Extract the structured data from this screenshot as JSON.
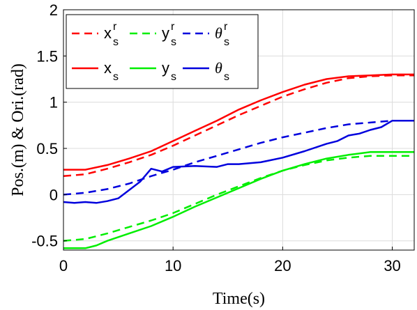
{
  "chart_data": {
    "type": "line",
    "xlabel": "Time(s)",
    "ylabel": "Pos.(m) & Ori.(rad)",
    "xlim": [
      0,
      32
    ],
    "ylim": [
      -0.6,
      2
    ],
    "xticks": [
      0,
      10,
      20,
      30
    ],
    "yticks": [
      -0.5,
      0,
      0.5,
      1,
      1.5,
      2
    ],
    "grid": true,
    "legend_position": "top-left",
    "series": [
      {
        "name": "x_s^r",
        "label_main": "x",
        "label_sub": "s",
        "label_sup": "r",
        "color": "#ff0000",
        "dash": true,
        "points": [
          [
            0,
            0.2
          ],
          [
            2,
            0.22
          ],
          [
            4,
            0.28
          ],
          [
            6,
            0.35
          ],
          [
            8,
            0.43
          ],
          [
            10,
            0.53
          ],
          [
            12,
            0.64
          ],
          [
            14,
            0.75
          ],
          [
            16,
            0.86
          ],
          [
            18,
            0.96
          ],
          [
            20,
            1.06
          ],
          [
            22,
            1.14
          ],
          [
            24,
            1.21
          ],
          [
            26,
            1.26
          ],
          [
            28,
            1.28
          ],
          [
            30,
            1.29
          ],
          [
            32,
            1.29
          ]
        ]
      },
      {
        "name": "y_s^r",
        "label_main": "y",
        "label_sub": "s",
        "label_sup": "r",
        "color": "#00ee00",
        "dash": true,
        "points": [
          [
            0,
            -0.5
          ],
          [
            2,
            -0.48
          ],
          [
            4,
            -0.42
          ],
          [
            6,
            -0.35
          ],
          [
            8,
            -0.28
          ],
          [
            10,
            -0.2
          ],
          [
            12,
            -0.1
          ],
          [
            14,
            0.0
          ],
          [
            16,
            0.09
          ],
          [
            18,
            0.18
          ],
          [
            20,
            0.26
          ],
          [
            22,
            0.32
          ],
          [
            24,
            0.37
          ],
          [
            26,
            0.4
          ],
          [
            28,
            0.42
          ],
          [
            30,
            0.42
          ],
          [
            32,
            0.42
          ]
        ]
      },
      {
        "name": "θ_s^r",
        "label_main": "θ",
        "label_sub": "s",
        "label_sup": "r",
        "color": "#0000dd",
        "dash": true,
        "points": [
          [
            0,
            0.0
          ],
          [
            2,
            0.02
          ],
          [
            4,
            0.06
          ],
          [
            6,
            0.12
          ],
          [
            8,
            0.2
          ],
          [
            10,
            0.27
          ],
          [
            12,
            0.35
          ],
          [
            14,
            0.42
          ],
          [
            16,
            0.49
          ],
          [
            18,
            0.56
          ],
          [
            20,
            0.62
          ],
          [
            22,
            0.67
          ],
          [
            24,
            0.72
          ],
          [
            26,
            0.76
          ],
          [
            28,
            0.78
          ],
          [
            30,
            0.8
          ],
          [
            32,
            0.8
          ]
        ]
      },
      {
        "name": "x_s",
        "label_main": "x",
        "label_sub": "s",
        "color": "#ff0000",
        "dash": false,
        "points": [
          [
            0,
            0.27
          ],
          [
            2,
            0.27
          ],
          [
            4,
            0.32
          ],
          [
            6,
            0.39
          ],
          [
            8,
            0.47
          ],
          [
            10,
            0.58
          ],
          [
            12,
            0.69
          ],
          [
            14,
            0.8
          ],
          [
            16,
            0.92
          ],
          [
            18,
            1.02
          ],
          [
            20,
            1.11
          ],
          [
            22,
            1.19
          ],
          [
            24,
            1.25
          ],
          [
            26,
            1.28
          ],
          [
            28,
            1.29
          ],
          [
            30,
            1.3
          ],
          [
            32,
            1.3
          ]
        ]
      },
      {
        "name": "y_s",
        "label_main": "y",
        "label_sub": "s",
        "color": "#00ee00",
        "dash": false,
        "points": [
          [
            0,
            -0.58
          ],
          [
            2,
            -0.58
          ],
          [
            3,
            -0.55
          ],
          [
            4,
            -0.5
          ],
          [
            6,
            -0.42
          ],
          [
            8,
            -0.34
          ],
          [
            10,
            -0.24
          ],
          [
            12,
            -0.13
          ],
          [
            14,
            -0.03
          ],
          [
            16,
            0.07
          ],
          [
            18,
            0.17
          ],
          [
            20,
            0.26
          ],
          [
            22,
            0.33
          ],
          [
            24,
            0.39
          ],
          [
            26,
            0.43
          ],
          [
            28,
            0.46
          ],
          [
            30,
            0.46
          ],
          [
            32,
            0.46
          ]
        ]
      },
      {
        "name": "θ_s",
        "label_main": "θ",
        "label_sub": "s",
        "color": "#0000dd",
        "dash": false,
        "points": [
          [
            0,
            -0.08
          ],
          [
            1,
            -0.09
          ],
          [
            2,
            -0.08
          ],
          [
            3,
            -0.09
          ],
          [
            4,
            -0.07
          ],
          [
            5,
            -0.04
          ],
          [
            6,
            0.05
          ],
          [
            7,
            0.14
          ],
          [
            8,
            0.28
          ],
          [
            9,
            0.25
          ],
          [
            10,
            0.3
          ],
          [
            12,
            0.31
          ],
          [
            14,
            0.3
          ],
          [
            15,
            0.33
          ],
          [
            16,
            0.33
          ],
          [
            18,
            0.35
          ],
          [
            20,
            0.4
          ],
          [
            22,
            0.47
          ],
          [
            24,
            0.55
          ],
          [
            25,
            0.58
          ],
          [
            26,
            0.64
          ],
          [
            27,
            0.66
          ],
          [
            28,
            0.7
          ],
          [
            29,
            0.73
          ],
          [
            30,
            0.8
          ],
          [
            32,
            0.8
          ]
        ]
      }
    ]
  }
}
